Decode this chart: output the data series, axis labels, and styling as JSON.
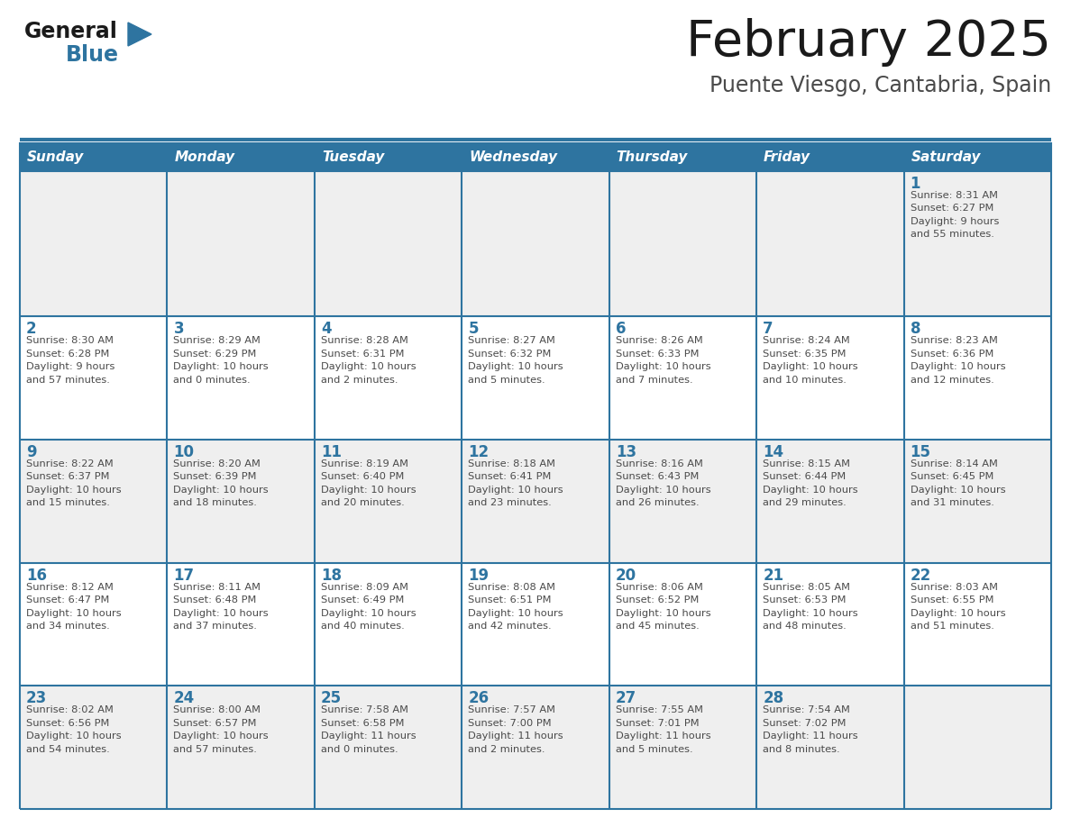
{
  "title": "February 2025",
  "subtitle": "Puente Viesgo, Cantabria, Spain",
  "days_of_week": [
    "Sunday",
    "Monday",
    "Tuesday",
    "Wednesday",
    "Thursday",
    "Friday",
    "Saturday"
  ],
  "header_bg": "#2E74A0",
  "header_text": "#FFFFFF",
  "cell_bg_odd": "#FFFFFF",
  "cell_bg_even": "#EFEFEF",
  "border_color": "#2E74A0",
  "day_num_color": "#2E74A0",
  "info_text_color": "#4A4A4A",
  "title_color": "#1A1A1A",
  "subtitle_color": "#4A4A4A",
  "logo_general_color": "#1A1A1A",
  "logo_blue_color": "#2E74A0",
  "weeks": [
    [
      {
        "day": null,
        "sunrise": null,
        "sunset": null,
        "daylight": null
      },
      {
        "day": null,
        "sunrise": null,
        "sunset": null,
        "daylight": null
      },
      {
        "day": null,
        "sunrise": null,
        "sunset": null,
        "daylight": null
      },
      {
        "day": null,
        "sunrise": null,
        "sunset": null,
        "daylight": null
      },
      {
        "day": null,
        "sunrise": null,
        "sunset": null,
        "daylight": null
      },
      {
        "day": null,
        "sunrise": null,
        "sunset": null,
        "daylight": null
      },
      {
        "day": 1,
        "sunrise": "8:31 AM",
        "sunset": "6:27 PM",
        "daylight": "9 hours\nand 55 minutes."
      }
    ],
    [
      {
        "day": 2,
        "sunrise": "8:30 AM",
        "sunset": "6:28 PM",
        "daylight": "9 hours\nand 57 minutes."
      },
      {
        "day": 3,
        "sunrise": "8:29 AM",
        "sunset": "6:29 PM",
        "daylight": "10 hours\nand 0 minutes."
      },
      {
        "day": 4,
        "sunrise": "8:28 AM",
        "sunset": "6:31 PM",
        "daylight": "10 hours\nand 2 minutes."
      },
      {
        "day": 5,
        "sunrise": "8:27 AM",
        "sunset": "6:32 PM",
        "daylight": "10 hours\nand 5 minutes."
      },
      {
        "day": 6,
        "sunrise": "8:26 AM",
        "sunset": "6:33 PM",
        "daylight": "10 hours\nand 7 minutes."
      },
      {
        "day": 7,
        "sunrise": "8:24 AM",
        "sunset": "6:35 PM",
        "daylight": "10 hours\nand 10 minutes."
      },
      {
        "day": 8,
        "sunrise": "8:23 AM",
        "sunset": "6:36 PM",
        "daylight": "10 hours\nand 12 minutes."
      }
    ],
    [
      {
        "day": 9,
        "sunrise": "8:22 AM",
        "sunset": "6:37 PM",
        "daylight": "10 hours\nand 15 minutes."
      },
      {
        "day": 10,
        "sunrise": "8:20 AM",
        "sunset": "6:39 PM",
        "daylight": "10 hours\nand 18 minutes."
      },
      {
        "day": 11,
        "sunrise": "8:19 AM",
        "sunset": "6:40 PM",
        "daylight": "10 hours\nand 20 minutes."
      },
      {
        "day": 12,
        "sunrise": "8:18 AM",
        "sunset": "6:41 PM",
        "daylight": "10 hours\nand 23 minutes."
      },
      {
        "day": 13,
        "sunrise": "8:16 AM",
        "sunset": "6:43 PM",
        "daylight": "10 hours\nand 26 minutes."
      },
      {
        "day": 14,
        "sunrise": "8:15 AM",
        "sunset": "6:44 PM",
        "daylight": "10 hours\nand 29 minutes."
      },
      {
        "day": 15,
        "sunrise": "8:14 AM",
        "sunset": "6:45 PM",
        "daylight": "10 hours\nand 31 minutes."
      }
    ],
    [
      {
        "day": 16,
        "sunrise": "8:12 AM",
        "sunset": "6:47 PM",
        "daylight": "10 hours\nand 34 minutes."
      },
      {
        "day": 17,
        "sunrise": "8:11 AM",
        "sunset": "6:48 PM",
        "daylight": "10 hours\nand 37 minutes."
      },
      {
        "day": 18,
        "sunrise": "8:09 AM",
        "sunset": "6:49 PM",
        "daylight": "10 hours\nand 40 minutes."
      },
      {
        "day": 19,
        "sunrise": "8:08 AM",
        "sunset": "6:51 PM",
        "daylight": "10 hours\nand 42 minutes."
      },
      {
        "day": 20,
        "sunrise": "8:06 AM",
        "sunset": "6:52 PM",
        "daylight": "10 hours\nand 45 minutes."
      },
      {
        "day": 21,
        "sunrise": "8:05 AM",
        "sunset": "6:53 PM",
        "daylight": "10 hours\nand 48 minutes."
      },
      {
        "day": 22,
        "sunrise": "8:03 AM",
        "sunset": "6:55 PM",
        "daylight": "10 hours\nand 51 minutes."
      }
    ],
    [
      {
        "day": 23,
        "sunrise": "8:02 AM",
        "sunset": "6:56 PM",
        "daylight": "10 hours\nand 54 minutes."
      },
      {
        "day": 24,
        "sunrise": "8:00 AM",
        "sunset": "6:57 PM",
        "daylight": "10 hours\nand 57 minutes."
      },
      {
        "day": 25,
        "sunrise": "7:58 AM",
        "sunset": "6:58 PM",
        "daylight": "11 hours\nand 0 minutes."
      },
      {
        "day": 26,
        "sunrise": "7:57 AM",
        "sunset": "7:00 PM",
        "daylight": "11 hours\nand 2 minutes."
      },
      {
        "day": 27,
        "sunrise": "7:55 AM",
        "sunset": "7:01 PM",
        "daylight": "11 hours\nand 5 minutes."
      },
      {
        "day": 28,
        "sunrise": "7:54 AM",
        "sunset": "7:02 PM",
        "daylight": "11 hours\nand 8 minutes."
      },
      {
        "day": null,
        "sunrise": null,
        "sunset": null,
        "daylight": null
      }
    ]
  ]
}
